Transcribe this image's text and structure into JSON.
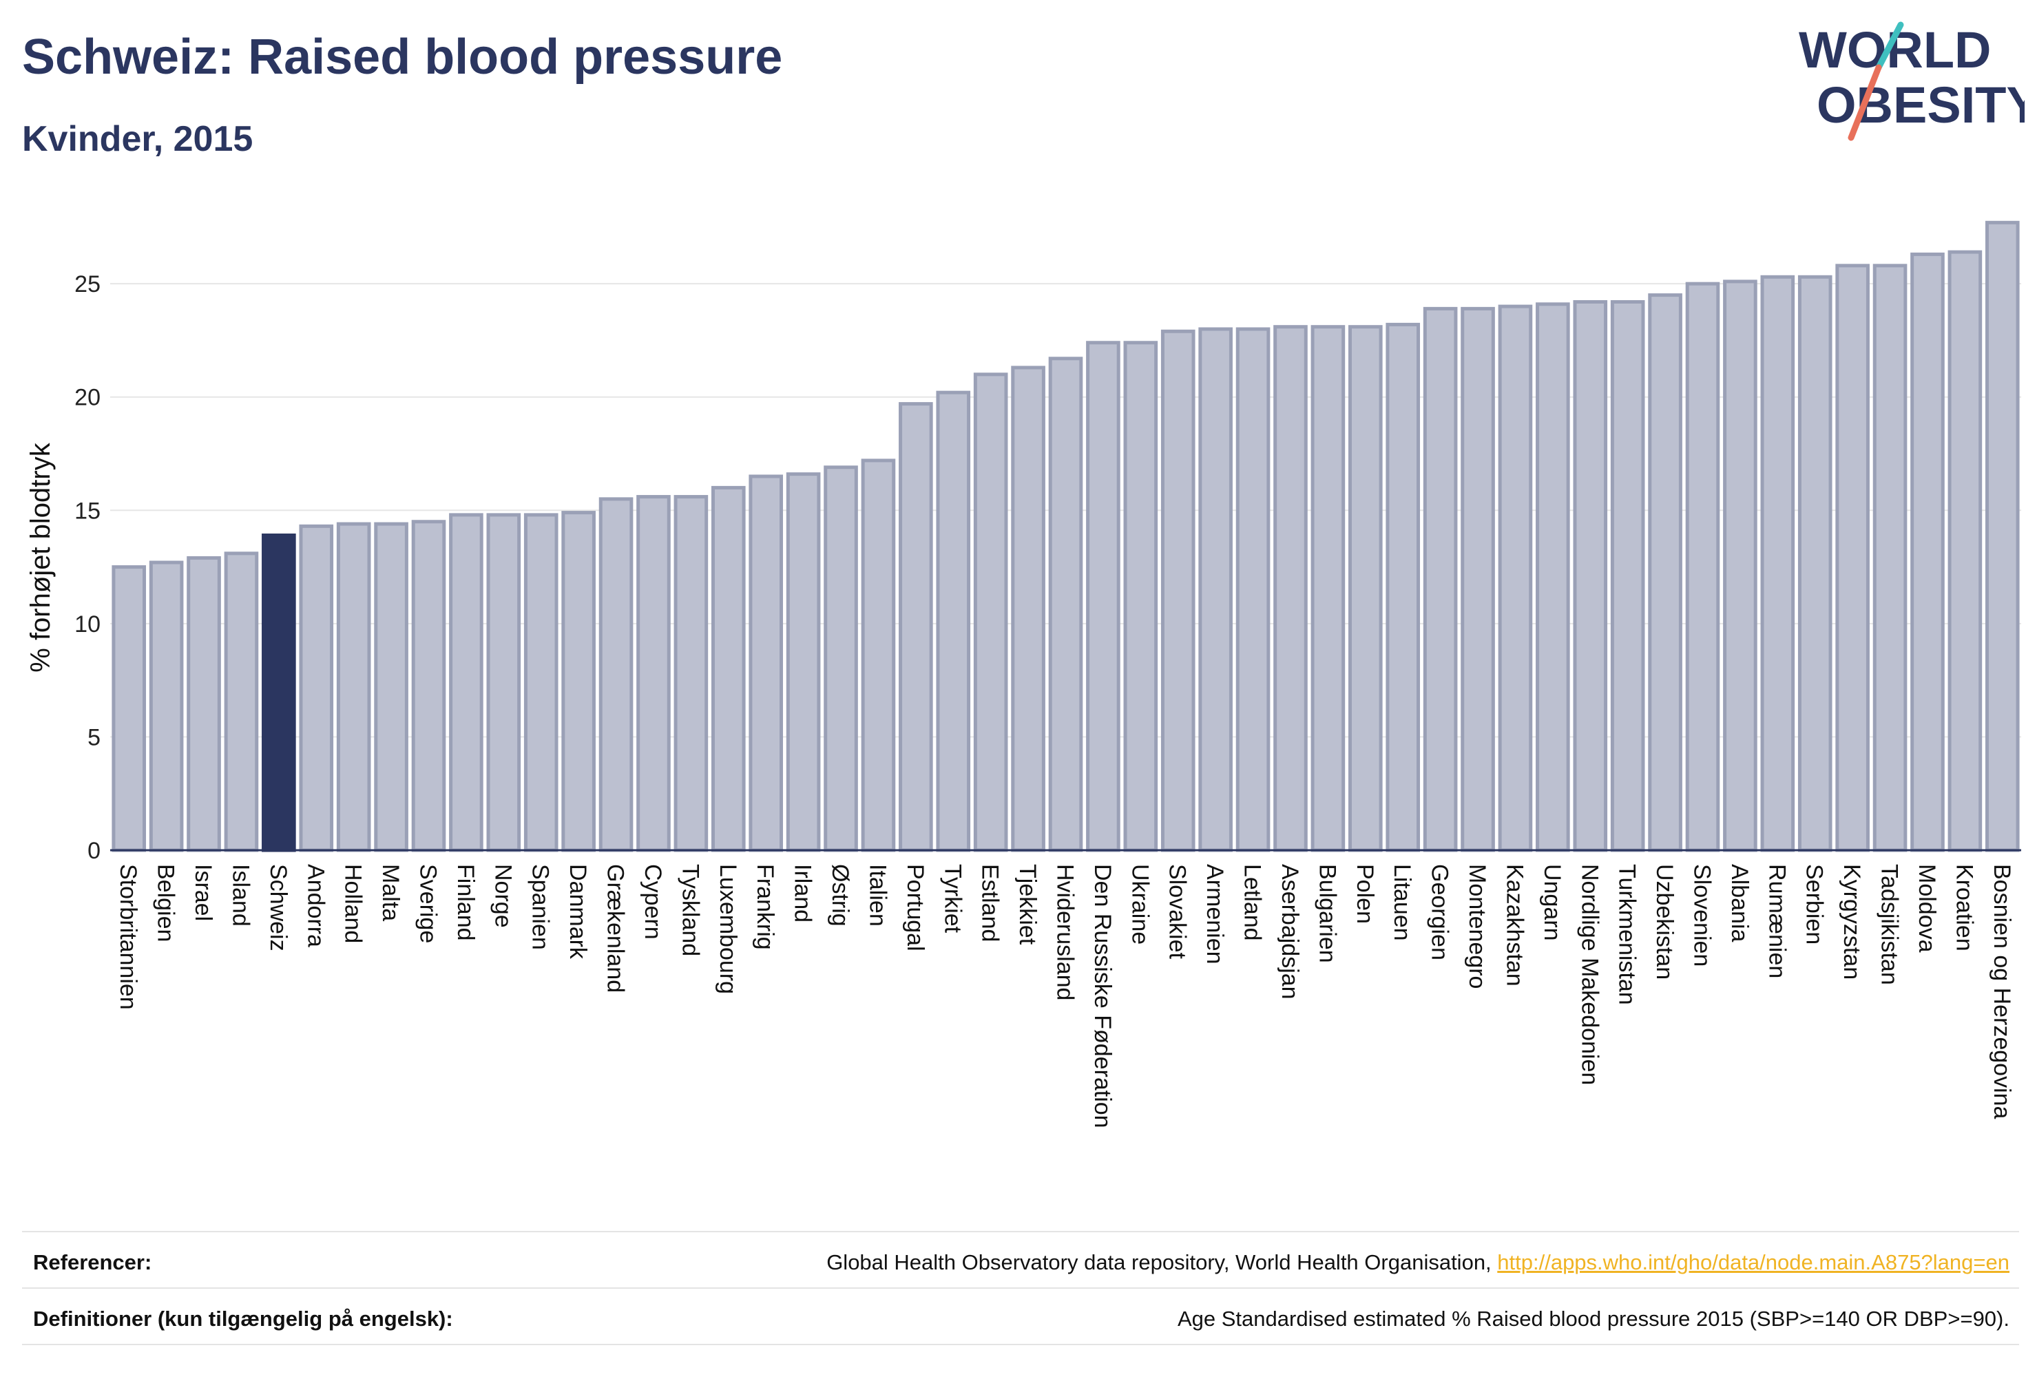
{
  "header": {
    "title": "Schweiz: Raised blood pressure",
    "subtitle": "Kvinder, 2015"
  },
  "logo": {
    "line1": "WORLD",
    "line2": "OBESITY",
    "colors": {
      "text": "#2b3660",
      "slash_teal": "#3fbfbf",
      "slash_coral": "#e8705a"
    }
  },
  "colors": {
    "bar": "#bcc0d0",
    "bar_stroke": "#9aa0b6",
    "highlight": "#2b3660",
    "grid": "#e6e6e6",
    "axis": "#2b3660"
  },
  "chart_data": {
    "type": "bar",
    "title": "Schweiz: Raised blood pressure",
    "subtitle": "Kvinder, 2015",
    "xlabel": "",
    "ylabel": "% forhøjet blodtryk",
    "ylim": [
      0,
      27.8
    ],
    "yticks": [
      0,
      5,
      10,
      15,
      20,
      25
    ],
    "grid": true,
    "highlight": "Schweiz",
    "categories": [
      "Storbritannien",
      "Belgien",
      "Israel",
      "Island",
      "Schweiz",
      "Andorra",
      "Holland",
      "Malta",
      "Sverige",
      "Finland",
      "Norge",
      "Spanien",
      "Danmark",
      "Grækenland",
      "Cypern",
      "Tyskland",
      "Luxembourg",
      "Frankrig",
      "Irland",
      "Østrig",
      "Italien",
      "Portugal",
      "Tyrkiet",
      "Estland",
      "Tjekkiet",
      "Hviderusland",
      "Den Russiske Føderation",
      "Ukraine",
      "Slovakiet",
      "Armenien",
      "Letland",
      "Aserbajdsjan",
      "Bulgarien",
      "Polen",
      "Litauen",
      "Georgien",
      "Montenegro",
      "Kazakhstan",
      "Ungarn",
      "Nordlige Makedonien",
      "Turkmenistan",
      "Uzbekistan",
      "Slovenien",
      "Albania",
      "Rumænien",
      "Serbien",
      "Kyrgyzstan",
      "Tadsjikistan",
      "Moldova",
      "Kroatien",
      "Bosnien og Herzegovina"
    ],
    "values": [
      12.5,
      12.7,
      12.9,
      13.1,
      13.9,
      14.3,
      14.4,
      14.4,
      14.5,
      14.8,
      14.8,
      14.8,
      14.9,
      15.5,
      15.6,
      15.6,
      16.0,
      16.5,
      16.6,
      16.9,
      17.2,
      19.7,
      20.2,
      21.0,
      21.3,
      21.7,
      22.4,
      22.4,
      22.9,
      23.0,
      23.0,
      23.1,
      23.1,
      23.1,
      23.2,
      23.9,
      23.9,
      24.0,
      24.1,
      24.2,
      24.2,
      24.5,
      25.0,
      25.1,
      25.3,
      25.3,
      25.8,
      25.8,
      26.3,
      26.4,
      27.7
    ]
  },
  "footer": {
    "references_label": "Referencer:",
    "references_text": "Global Health Observatory data repository, World Health Organisation, ",
    "references_link": "http://apps.who.int/gho/data/node.main.A875?lang=en",
    "definitions_label": "Definitioner (kun tilgængelig på engelsk):",
    "definitions_text": "Age Standardised estimated % Raised blood pressure 2015 (SBP>=140 OR DBP>=90)."
  }
}
